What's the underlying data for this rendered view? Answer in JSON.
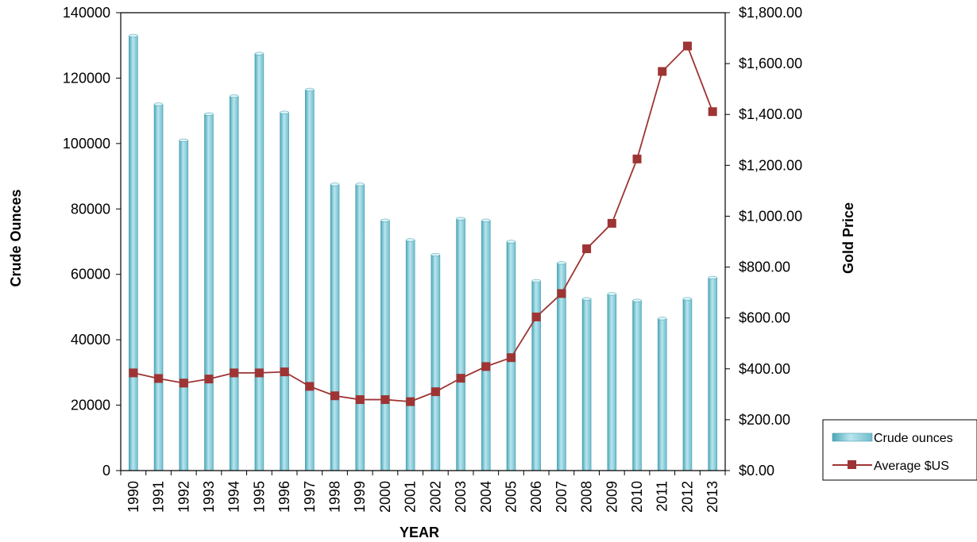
{
  "chart_data": {
    "type": "bar",
    "categories": [
      "1990",
      "1991",
      "1992",
      "1993",
      "1994",
      "1995",
      "1996",
      "1997",
      "1998",
      "1999",
      "2000",
      "2001",
      "2002",
      "2003",
      "2004",
      "2005",
      "2006",
      "2007",
      "2008",
      "2009",
      "2010",
      "2011",
      "2012",
      "2013"
    ],
    "series": [
      {
        "name": "Crude ounces",
        "type": "bar",
        "axis": "left",
        "color": "#7dc8d6",
        "values": [
          133000,
          112000,
          101000,
          109000,
          114500,
          127500,
          109500,
          116500,
          87500,
          87500,
          76500,
          70500,
          66000,
          77000,
          76500,
          70000,
          58000,
          63500,
          52500,
          54000,
          52000,
          46500,
          52500,
          59000
        ]
      },
      {
        "name": "Average $US",
        "type": "line",
        "axis": "right",
        "color": "#9e3434",
        "values": [
          384,
          362,
          344,
          360,
          384,
          384,
          388,
          331,
          294,
          279,
          279,
          271,
          310,
          363,
          409,
          444,
          604,
          696,
          872,
          972,
          1225,
          1569,
          1669,
          1411
        ]
      }
    ],
    "xlabel": "YEAR",
    "ylabel": "Crude Ounces",
    "y2label": "Gold Price",
    "ylim": [
      0,
      140000
    ],
    "y2lim": [
      0,
      1800
    ],
    "yticks": [
      "0",
      "20000",
      "40000",
      "60000",
      "80000",
      "100000",
      "120000",
      "140000"
    ],
    "y2ticks": [
      "$0.00",
      "$200.00",
      "$400.00",
      "$600.00",
      "$800.00",
      "$1,000.00",
      "$1,200.00",
      "$1,400.00",
      "$1,600.00",
      "$1,800.00"
    ],
    "legend": {
      "position": "right-bottom",
      "entries": [
        "Crude ounces",
        "Average $US"
      ]
    },
    "grid": false
  }
}
